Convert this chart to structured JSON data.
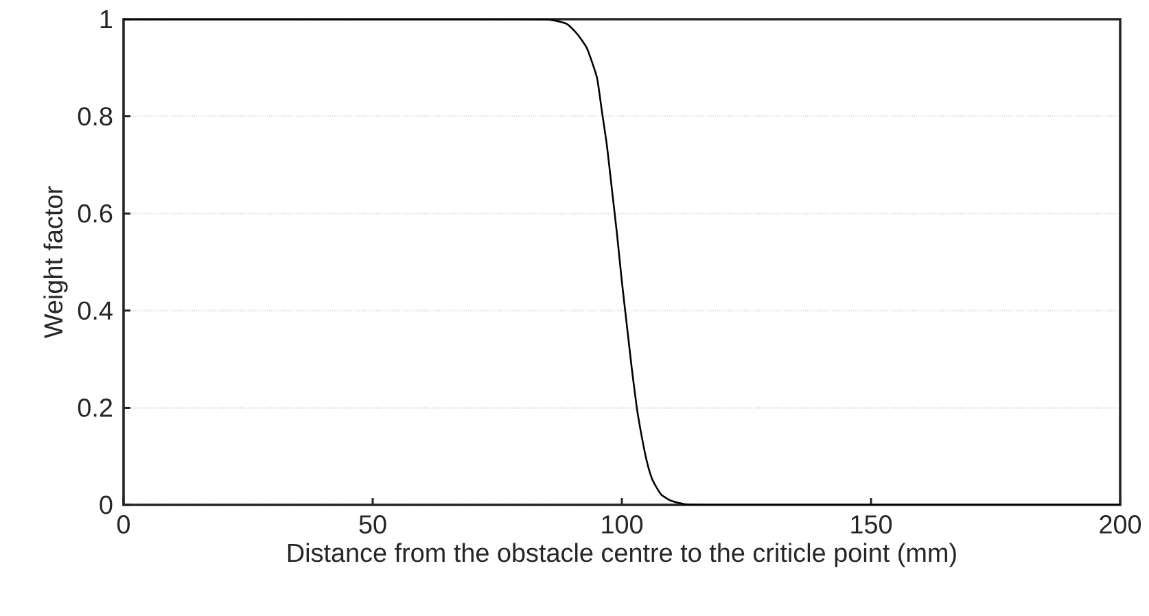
{
  "chart_data": {
    "type": "line",
    "xlabel": "Distance from the obstacle centre to the criticle point (mm)",
    "ylabel": "Weight factor",
    "xlim": [
      0,
      200
    ],
    "ylim": [
      0,
      1
    ],
    "xticks": [
      0,
      50,
      100,
      150,
      200
    ],
    "yticks": [
      0,
      0.2,
      0.4,
      0.6,
      0.8,
      1
    ],
    "grid": "y",
    "line_style": "solid",
    "series": [
      {
        "color": "#000000",
        "x": [
          0,
          80,
          86,
          89,
          91,
          93,
          95,
          96,
          97,
          98,
          99,
          100,
          101,
          102,
          103,
          104,
          105,
          106,
          107,
          108,
          110,
          113,
          120,
          150,
          200
        ],
        "values": [
          1,
          1,
          0.998,
          0.99,
          0.97,
          0.94,
          0.88,
          0.81,
          0.74,
          0.65,
          0.56,
          0.46,
          0.37,
          0.28,
          0.2,
          0.14,
          0.09,
          0.055,
          0.035,
          0.02,
          0.008,
          0.001,
          0,
          0,
          0
        ]
      }
    ]
  }
}
